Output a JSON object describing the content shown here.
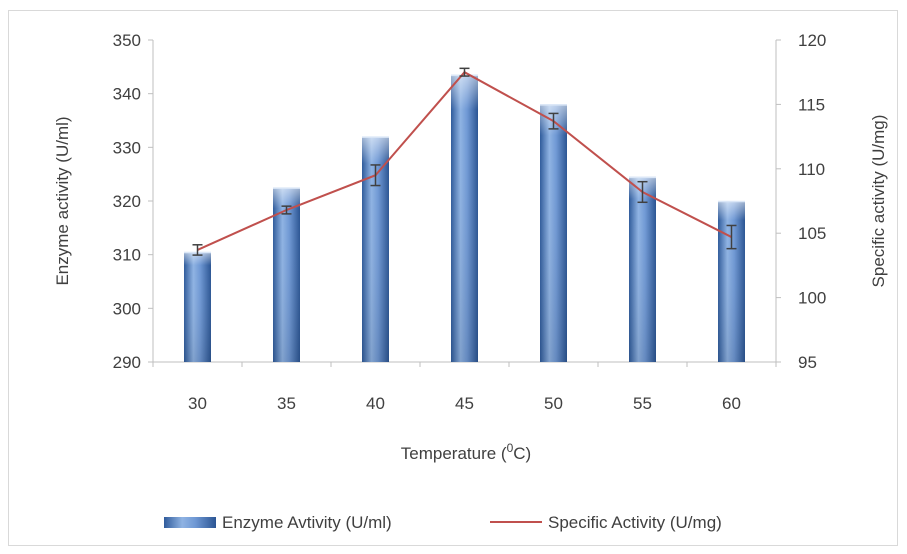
{
  "chart_data": {
    "type": "bar",
    "categories": [
      "30",
      "35",
      "40",
      "45",
      "50",
      "55",
      "60"
    ],
    "xlabel_parts": [
      "Temperature (",
      "0",
      "C)"
    ],
    "ylabel": "Enzyme activity (U/ml)",
    "y2label": "Specific activity (U/mg)",
    "ylim": [
      290,
      350
    ],
    "y2lim": [
      95,
      120
    ],
    "yticks": [
      290,
      300,
      310,
      320,
      330,
      340,
      350
    ],
    "y2ticks": [
      95,
      100,
      105,
      110,
      115,
      120
    ],
    "grid": false,
    "legend_position": "bottom",
    "series": [
      {
        "name": "Enzyme Avtivity (U/ml)",
        "kind": "bar",
        "axis": "left",
        "values": [
          310.5,
          322.5,
          332,
          343.5,
          338,
          324.5,
          320
        ],
        "color": "#4f81bd"
      },
      {
        "name": "Specific Activity (U/mg)",
        "kind": "line",
        "axis": "right",
        "values": [
          103.7,
          106.8,
          109.5,
          117.5,
          113.7,
          108.2,
          104.7
        ],
        "errors": [
          0.4,
          0.3,
          0.8,
          0.3,
          0.6,
          0.8,
          0.9
        ],
        "color": "#c0504d"
      }
    ]
  }
}
